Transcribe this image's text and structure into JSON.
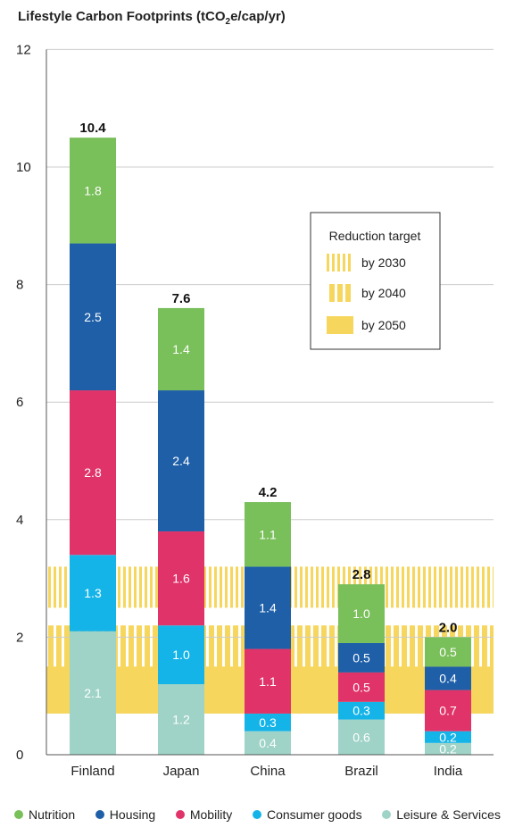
{
  "chart_data": {
    "type": "bar",
    "stacked": true,
    "title_main": "Lifestyle Carbon Footprints (tCO",
    "title_sub": "2",
    "title_end": "e/cap/yr)",
    "categories": [
      "Finland",
      "Japan",
      "China",
      "Brazil",
      "India"
    ],
    "totals": [
      "10.4",
      "7.6",
      "4.2",
      "2.8",
      "2.0"
    ],
    "ylim": [
      0,
      12
    ],
    "yticks": [
      "0",
      "2",
      "4",
      "6",
      "8",
      "10",
      "12"
    ],
    "series": [
      {
        "name": "Leisure & Services",
        "color": "#9fd3c7",
        "values": [
          2.1,
          1.2,
          0.4,
          0.6,
          0.2
        ],
        "labels": [
          "2.1",
          "1.2",
          "0.4",
          "0.6",
          "0.2"
        ]
      },
      {
        "name": "Consumer goods",
        "color": "#15b4e8",
        "values": [
          1.3,
          1.0,
          0.3,
          0.3,
          0.2
        ],
        "labels": [
          "1.3",
          "1.0",
          "0.3",
          "0.3",
          "0.2"
        ]
      },
      {
        "name": "Mobility",
        "color": "#e0336a",
        "values": [
          2.8,
          1.6,
          1.1,
          0.5,
          0.7
        ],
        "labels": [
          "2.8",
          "1.6",
          "1.1",
          "0.5",
          "0.7"
        ]
      },
      {
        "name": "Housing",
        "color": "#1e5fa8",
        "values": [
          2.5,
          2.4,
          1.4,
          0.5,
          0.4
        ],
        "labels": [
          "2.5",
          "2.4",
          "1.4",
          "0.5",
          "0.4"
        ]
      },
      {
        "name": "Nutrition",
        "color": "#79bf5a",
        "values": [
          1.8,
          1.4,
          1.1,
          1.0,
          0.5
        ],
        "labels": [
          "1.8",
          "1.4",
          "1.1",
          "1.0",
          "0.5"
        ]
      }
    ],
    "legend_order": [
      "Nutrition",
      "Housing",
      "Mobility",
      "Consumer goods",
      "Leisure & Services"
    ],
    "reduction_target": {
      "title": "Reduction target",
      "color": "#f7d65e",
      "bands": [
        {
          "label": "by 2030",
          "range": [
            2.5,
            3.2
          ],
          "pattern": "stripes-thin"
        },
        {
          "label": "by 2040",
          "range": [
            1.4,
            2.2
          ],
          "pattern": "stripes-thick"
        },
        {
          "label": "by 2050",
          "range": [
            0.7,
            1.5
          ],
          "pattern": "solid"
        }
      ]
    },
    "grid": true
  }
}
